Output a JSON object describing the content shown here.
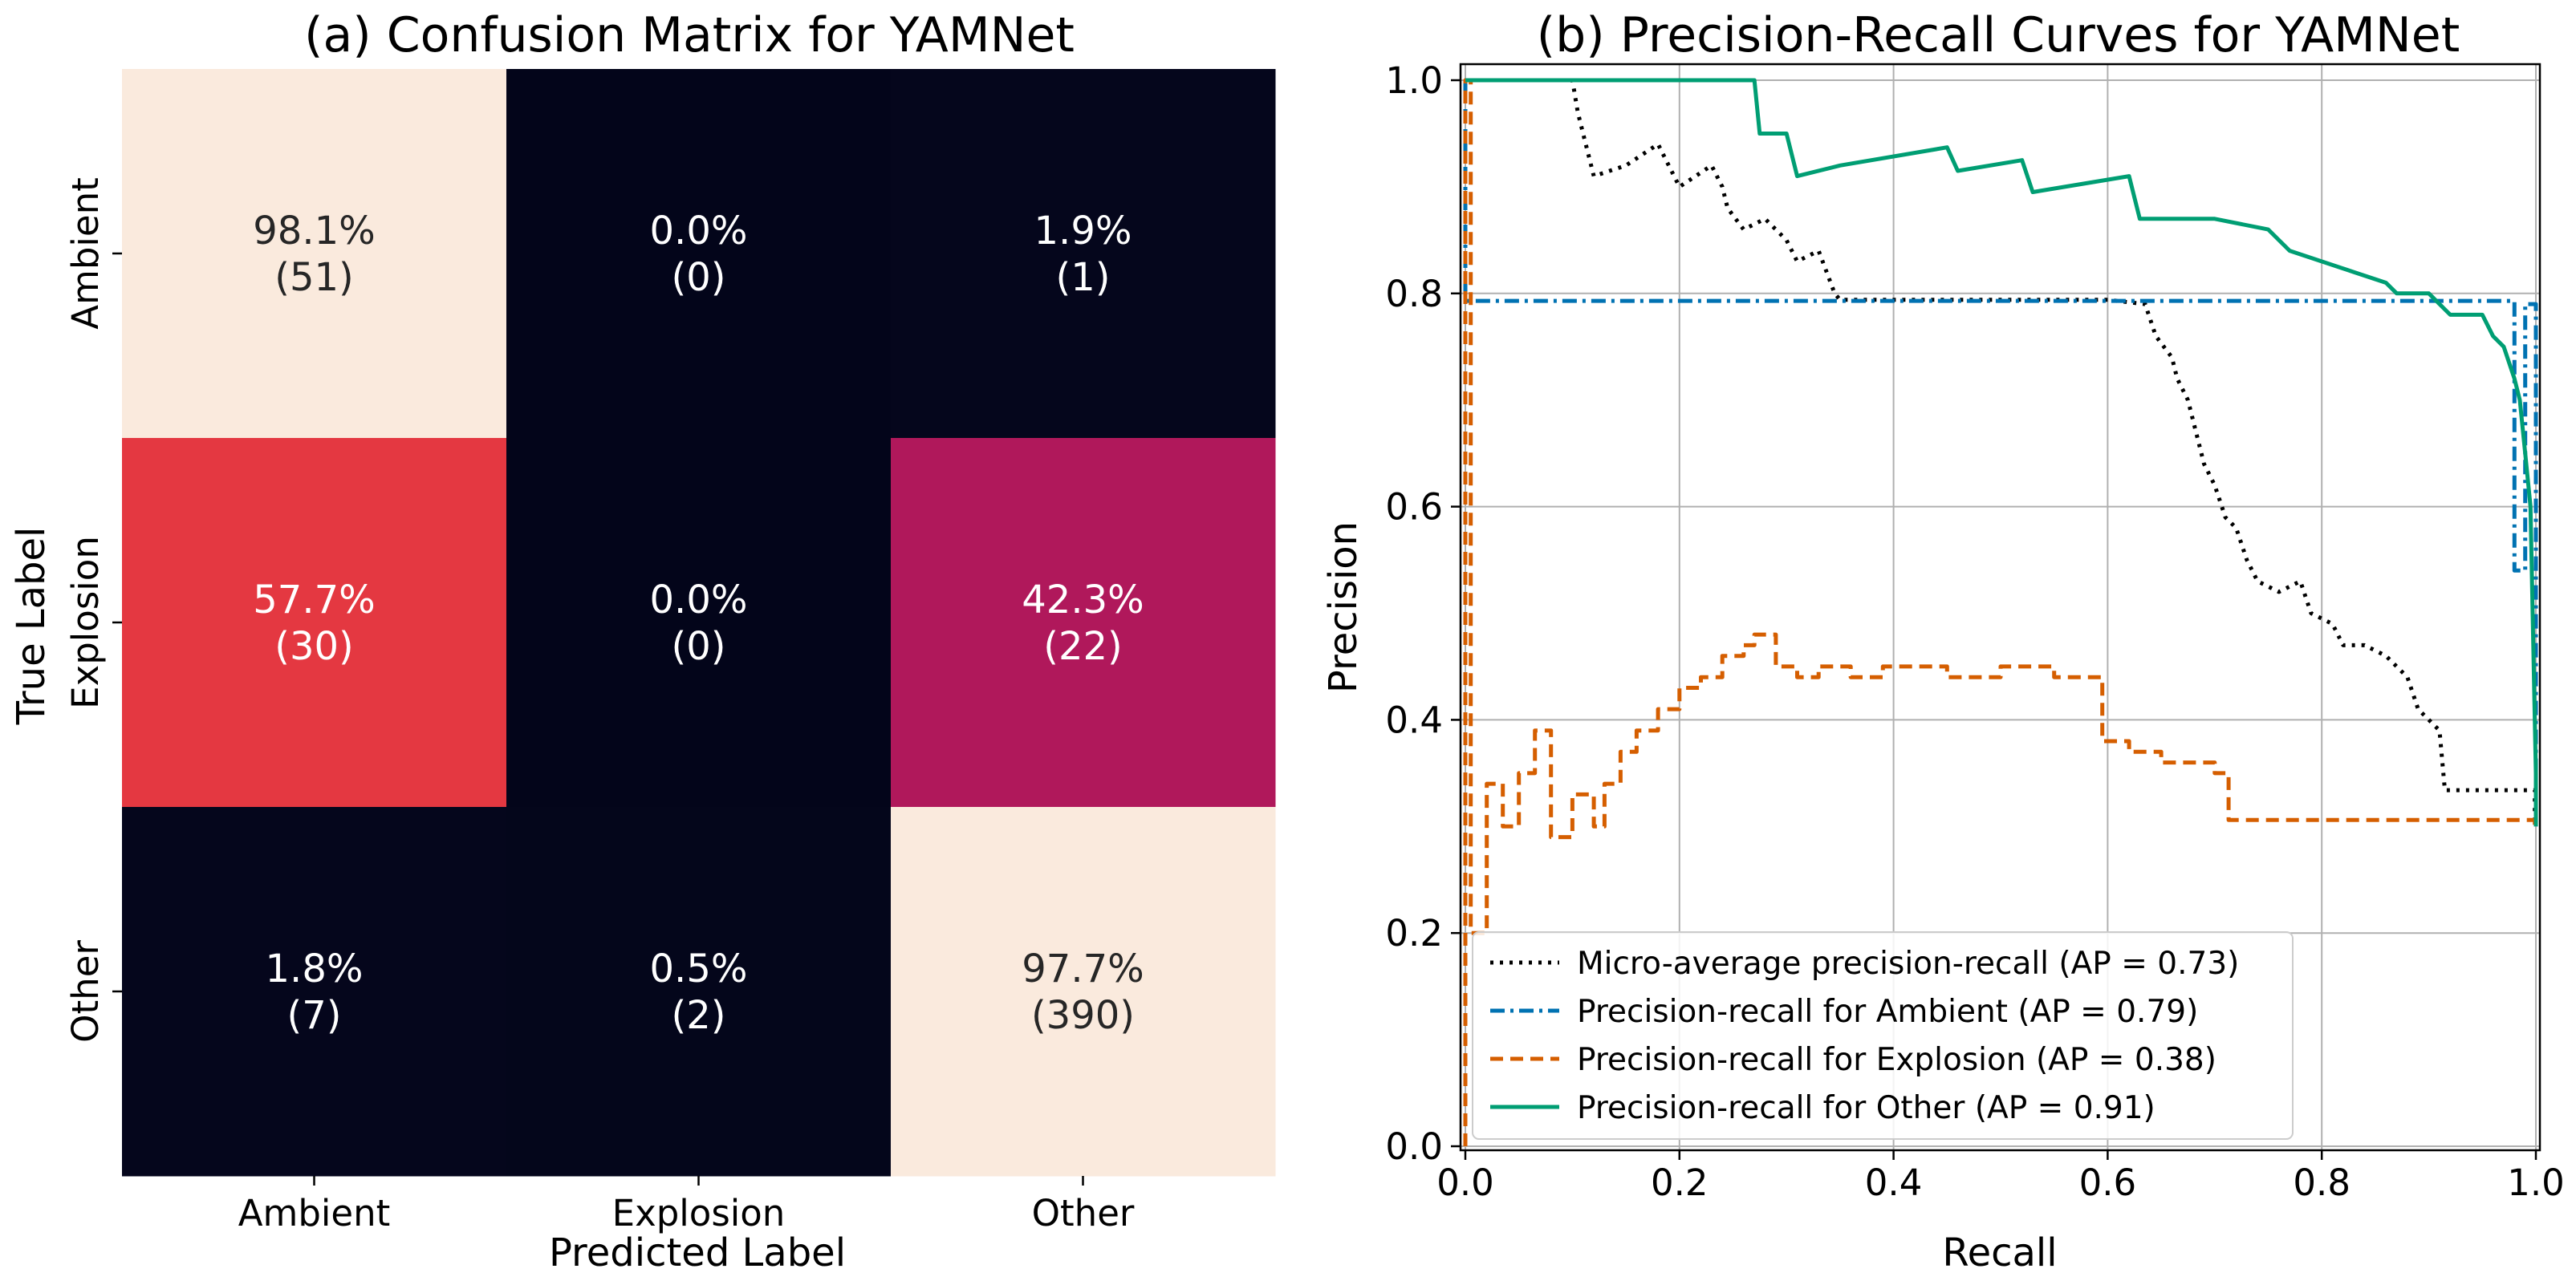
{
  "chart_data": [
    {
      "type": "heatmap",
      "title": "(a) Confusion Matrix for YAMNet",
      "xlabel": "Predicted Label",
      "ylabel": "True Label",
      "x_categories": [
        "Ambient",
        "Explosion",
        "Other"
      ],
      "y_categories": [
        "Ambient",
        "Explosion",
        "Other"
      ],
      "matrix_percent": [
        [
          98.1,
          0.0,
          1.9
        ],
        [
          57.7,
          0.0,
          42.3
        ],
        [
          1.8,
          0.5,
          97.7
        ]
      ],
      "matrix_counts": [
        [
          51,
          0,
          1
        ],
        [
          30,
          0,
          22
        ],
        [
          7,
          2,
          390
        ]
      ],
      "cells": [
        [
          {
            "pct": "98.1%",
            "count": "(51)"
          },
          {
            "pct": "0.0%",
            "count": "(0)"
          },
          {
            "pct": "1.9%",
            "count": "(1)"
          }
        ],
        [
          {
            "pct": "57.7%",
            "count": "(30)"
          },
          {
            "pct": "0.0%",
            "count": "(0)"
          },
          {
            "pct": "42.3%",
            "count": "(22)"
          }
        ],
        [
          {
            "pct": "1.8%",
            "count": "(7)"
          },
          {
            "pct": "0.5%",
            "count": "(2)"
          },
          {
            "pct": "97.7%",
            "count": "(390)"
          }
        ]
      ],
      "colors": {
        "cells": [
          [
            "#faeadd",
            "#03051a",
            "#05061c"
          ],
          [
            "#e43841",
            "#03051a",
            "#b0185b"
          ],
          [
            "#05061c",
            "#04061b",
            "#faeadd"
          ]
        ],
        "text": [
          [
            "#262626",
            "#ffffff",
            "#ffffff"
          ],
          [
            "#ffffff",
            "#ffffff",
            "#ffffff"
          ],
          [
            "#ffffff",
            "#ffffff",
            "#262626"
          ]
        ]
      },
      "colorbar": false
    },
    {
      "type": "line",
      "title": "(b) Precision-Recall Curves for YAMNet",
      "xlabel": "Recall",
      "ylabel": "Precision",
      "xlim": [
        0.0,
        1.0
      ],
      "ylim": [
        0.0,
        1.0
      ],
      "xticks": [
        "0.0",
        "0.2",
        "0.4",
        "0.6",
        "0.8",
        "1.0"
      ],
      "yticks": [
        "0.0",
        "0.2",
        "0.4",
        "0.6",
        "0.8",
        "1.0"
      ],
      "grid": true,
      "legend": "lower-left",
      "series": [
        {
          "name": "Micro-average precision-recall (AP = 0.73)",
          "style": "dotted",
          "color": "#000000",
          "points": [
            [
              0.0,
              1.0
            ],
            [
              0.1,
              1.0
            ],
            [
              0.105,
              0.97
            ],
            [
              0.11,
              0.95
            ],
            [
              0.115,
              0.93
            ],
            [
              0.12,
              0.91
            ],
            [
              0.15,
              0.92
            ],
            [
              0.18,
              0.94
            ],
            [
              0.2,
              0.9
            ],
            [
              0.23,
              0.92
            ],
            [
              0.24,
              0.9
            ],
            [
              0.245,
              0.88
            ],
            [
              0.26,
              0.86
            ],
            [
              0.28,
              0.87
            ],
            [
              0.3,
              0.85
            ],
            [
              0.31,
              0.83
            ],
            [
              0.33,
              0.84
            ],
            [
              0.345,
              0.8
            ],
            [
              0.35,
              0.794
            ],
            [
              0.6,
              0.794
            ],
            [
              0.635,
              0.79
            ],
            [
              0.645,
              0.76
            ],
            [
              0.66,
              0.74
            ],
            [
              0.665,
              0.72
            ],
            [
              0.675,
              0.7
            ],
            [
              0.68,
              0.68
            ],
            [
              0.69,
              0.64
            ],
            [
              0.7,
              0.62
            ],
            [
              0.71,
              0.59
            ],
            [
              0.72,
              0.58
            ],
            [
              0.73,
              0.55
            ],
            [
              0.74,
              0.53
            ],
            [
              0.76,
              0.52
            ],
            [
              0.78,
              0.53
            ],
            [
              0.79,
              0.5
            ],
            [
              0.81,
              0.49
            ],
            [
              0.82,
              0.47
            ],
            [
              0.84,
              0.47
            ],
            [
              0.86,
              0.46
            ],
            [
              0.88,
              0.44
            ],
            [
              0.89,
              0.41
            ],
            [
              0.91,
              0.39
            ],
            [
              0.915,
              0.334
            ],
            [
              0.999,
              0.334
            ],
            [
              0.999,
              0.3
            ]
          ]
        },
        {
          "name": "Precision-recall for Ambient (AP = 0.79)",
          "style": "dashdot",
          "color": "#0072b2",
          "points": [
            [
              0.0,
              1.0
            ],
            [
              0.0,
              0.793
            ],
            [
              0.98,
              0.793
            ],
            [
              0.98,
              0.54
            ],
            [
              0.99,
              0.54
            ],
            [
              0.99,
              0.79
            ],
            [
              1.0,
              0.79
            ],
            [
              1.0,
              0.3
            ]
          ]
        },
        {
          "name": "Precision-recall for Explosion (AP = 0.38)",
          "style": "dashed",
          "color": "#d55e00",
          "points": [
            [
              0.0,
              0.0
            ],
            [
              0.0,
              1.0
            ],
            [
              0.005,
              1.0
            ],
            [
              0.005,
              0.2
            ],
            [
              0.02,
              0.2
            ],
            [
              0.02,
              0.34
            ],
            [
              0.035,
              0.34
            ],
            [
              0.035,
              0.3
            ],
            [
              0.05,
              0.3
            ],
            [
              0.05,
              0.35
            ],
            [
              0.065,
              0.35
            ],
            [
              0.065,
              0.39
            ],
            [
              0.08,
              0.39
            ],
            [
              0.08,
              0.29
            ],
            [
              0.1,
              0.29
            ],
            [
              0.1,
              0.33
            ],
            [
              0.12,
              0.33
            ],
            [
              0.12,
              0.3
            ],
            [
              0.13,
              0.3
            ],
            [
              0.13,
              0.34
            ],
            [
              0.145,
              0.34
            ],
            [
              0.145,
              0.37
            ],
            [
              0.16,
              0.37
            ],
            [
              0.16,
              0.39
            ],
            [
              0.18,
              0.39
            ],
            [
              0.18,
              0.41
            ],
            [
              0.2,
              0.41
            ],
            [
              0.2,
              0.43
            ],
            [
              0.22,
              0.43
            ],
            [
              0.22,
              0.44
            ],
            [
              0.24,
              0.44
            ],
            [
              0.24,
              0.46
            ],
            [
              0.26,
              0.46
            ],
            [
              0.26,
              0.47
            ],
            [
              0.27,
              0.47
            ],
            [
              0.27,
              0.48
            ],
            [
              0.29,
              0.48
            ],
            [
              0.29,
              0.45
            ],
            [
              0.31,
              0.45
            ],
            [
              0.31,
              0.44
            ],
            [
              0.33,
              0.44
            ],
            [
              0.33,
              0.45
            ],
            [
              0.36,
              0.45
            ],
            [
              0.36,
              0.44
            ],
            [
              0.39,
              0.44
            ],
            [
              0.39,
              0.45
            ],
            [
              0.45,
              0.45
            ],
            [
              0.45,
              0.44
            ],
            [
              0.5,
              0.44
            ],
            [
              0.5,
              0.45
            ],
            [
              0.55,
              0.45
            ],
            [
              0.55,
              0.44
            ],
            [
              0.595,
              0.44
            ],
            [
              0.595,
              0.38
            ],
            [
              0.62,
              0.38
            ],
            [
              0.62,
              0.37
            ],
            [
              0.65,
              0.37
            ],
            [
              0.65,
              0.36
            ],
            [
              0.7,
              0.36
            ],
            [
              0.7,
              0.35
            ],
            [
              0.713,
              0.35
            ],
            [
              0.713,
              0.306
            ],
            [
              0.999,
              0.306
            ],
            [
              0.999,
              0.3
            ]
          ]
        },
        {
          "name": "Precision-recall for Other (AP = 0.91)",
          "style": "solid",
          "color": "#009e73",
          "points": [
            [
              0.0,
              1.0
            ],
            [
              0.27,
              1.0
            ],
            [
              0.275,
              0.95
            ],
            [
              0.3,
              0.95
            ],
            [
              0.31,
              0.91
            ],
            [
              0.35,
              0.92
            ],
            [
              0.45,
              0.937
            ],
            [
              0.46,
              0.915
            ],
            [
              0.52,
              0.925
            ],
            [
              0.53,
              0.895
            ],
            [
              0.62,
              0.91
            ],
            [
              0.63,
              0.87
            ],
            [
              0.7,
              0.87
            ],
            [
              0.75,
              0.86
            ],
            [
              0.77,
              0.84
            ],
            [
              0.83,
              0.82
            ],
            [
              0.86,
              0.81
            ],
            [
              0.87,
              0.8
            ],
            [
              0.9,
              0.8
            ],
            [
              0.92,
              0.78
            ],
            [
              0.95,
              0.78
            ],
            [
              0.96,
              0.76
            ],
            [
              0.97,
              0.75
            ],
            [
              0.98,
              0.72
            ],
            [
              0.985,
              0.7
            ],
            [
              0.99,
              0.65
            ],
            [
              0.995,
              0.6
            ],
            [
              1.0,
              0.35
            ],
            [
              1.0,
              0.3
            ]
          ]
        }
      ]
    }
  ]
}
